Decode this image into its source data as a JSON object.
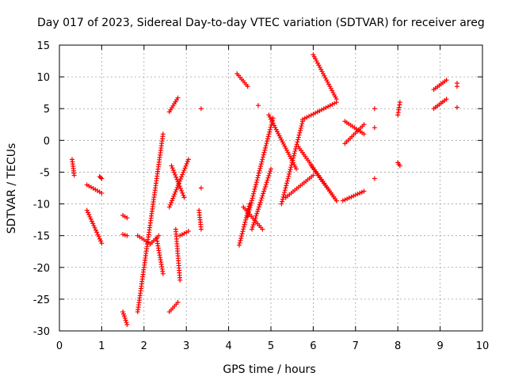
{
  "chart_data": {
    "type": "scatter",
    "title": "Day 017 of 2023, Sidereal Day-to-day VTEC variation (SDTVAR) for receiver areg",
    "xlabel": "GPS time / hours",
    "ylabel": "SDTVAR / TECUs",
    "xlim": [
      0,
      10
    ],
    "ylim": [
      -30,
      15
    ],
    "xticks": [
      "0",
      "1",
      "2",
      "3",
      "4",
      "5",
      "6",
      "7",
      "8",
      "9",
      "10"
    ],
    "yticks": [
      "-30",
      "-25",
      "-20",
      "-15",
      "-10",
      "-5",
      "0",
      "5",
      "10",
      "15"
    ],
    "grid": true,
    "marker": "+",
    "color": "#ff0000",
    "segments": [
      {
        "x0": 0.3,
        "x1": 0.35,
        "y0": -3.0,
        "y1": -5.5
      },
      {
        "x0": 0.65,
        "x1": 1.0,
        "y0": -7.0,
        "y1": -8.3
      },
      {
        "x0": 0.65,
        "x1": 1.0,
        "y0": -11.0,
        "y1": -16.2
      },
      {
        "x0": 0.95,
        "x1": 1.0,
        "y0": -5.7,
        "y1": -6.0
      },
      {
        "x0": 1.5,
        "x1": 1.6,
        "y0": -27.0,
        "y1": -29.0
      },
      {
        "x0": 1.5,
        "x1": 1.6,
        "y0": -11.8,
        "y1": -12.2
      },
      {
        "x0": 1.5,
        "x1": 1.6,
        "y0": -14.8,
        "y1": -15.0
      },
      {
        "x0": 1.85,
        "x1": 2.45,
        "y0": -27.0,
        "y1": 1.0
      },
      {
        "x0": 1.85,
        "x1": 2.15,
        "y0": -15.0,
        "y1": -16.3
      },
      {
        "x0": 2.15,
        "x1": 2.35,
        "y0": -16.3,
        "y1": -15.0
      },
      {
        "x0": 2.3,
        "x1": 2.45,
        "y0": -15.5,
        "y1": -21.0
      },
      {
        "x0": 2.6,
        "x1": 2.8,
        "y0": 4.5,
        "y1": 6.7
      },
      {
        "x0": 2.65,
        "x1": 2.95,
        "y0": -4.0,
        "y1": -9.0
      },
      {
        "x0": 2.6,
        "x1": 3.05,
        "y0": -10.5,
        "y1": -3.0
      },
      {
        "x0": 2.6,
        "x1": 2.8,
        "y0": -27.0,
        "y1": -25.5
      },
      {
        "x0": 2.75,
        "x1": 2.85,
        "y0": -14.0,
        "y1": -22.0
      },
      {
        "x0": 2.85,
        "x1": 3.05,
        "y0": -15.0,
        "y1": -14.3
      },
      {
        "x0": 3.3,
        "x1": 3.35,
        "y0": -11.0,
        "y1": -14.0
      },
      {
        "x0": 4.2,
        "x1": 4.45,
        "y0": 10.5,
        "y1": 8.5
      },
      {
        "x0": 4.25,
        "x1": 4.5,
        "y0": -16.5,
        "y1": -10.0
      },
      {
        "x0": 4.35,
        "x1": 4.8,
        "y0": -10.5,
        "y1": -14.0
      },
      {
        "x0": 4.45,
        "x1": 5.05,
        "y0": -12.0,
        "y1": 3.5
      },
      {
        "x0": 4.55,
        "x1": 5.0,
        "y0": -14.0,
        "y1": -4.5
      },
      {
        "x0": 4.95,
        "x1": 5.6,
        "y0": 4.0,
        "y1": -4.5
      },
      {
        "x0": 5.25,
        "x1": 5.75,
        "y0": -10.0,
        "y1": 3.0
      },
      {
        "x0": 5.35,
        "x1": 6.0,
        "y0": -9.0,
        "y1": -5.5
      },
      {
        "x0": 5.65,
        "x1": 6.55,
        "y0": -1.0,
        "y1": -9.5
      },
      {
        "x0": 5.75,
        "x1": 6.55,
        "y0": 3.3,
        "y1": 6.0
      },
      {
        "x0": 5.95,
        "x1": 6.55,
        "y0": -4.0,
        "y1": -9.5
      },
      {
        "x0": 6.0,
        "x1": 6.55,
        "y0": 13.5,
        "y1": 6.5
      },
      {
        "x0": 6.75,
        "x1": 7.2,
        "y0": 3.0,
        "y1": 1.0
      },
      {
        "x0": 6.75,
        "x1": 7.2,
        "y0": -0.5,
        "y1": 2.5
      },
      {
        "x0": 6.7,
        "x1": 7.2,
        "y0": -9.5,
        "y1": -8.0
      },
      {
        "x0": 8.0,
        "x1": 8.05,
        "y0": 4.0,
        "y1": 6.0
      },
      {
        "x0": 8.0,
        "x1": 8.05,
        "y0": -3.5,
        "y1": -4.0
      },
      {
        "x0": 8.85,
        "x1": 9.15,
        "y0": 8.0,
        "y1": 9.5
      },
      {
        "x0": 8.85,
        "x1": 9.15,
        "y0": 5.0,
        "y1": 6.5
      }
    ],
    "points": [
      {
        "x": 3.35,
        "y": 5.0
      },
      {
        "x": 3.35,
        "y": -7.5
      },
      {
        "x": 4.7,
        "y": 5.5
      },
      {
        "x": 7.45,
        "y": 5.0
      },
      {
        "x": 7.45,
        "y": 2.0
      },
      {
        "x": 7.45,
        "y": -6.0
      },
      {
        "x": 9.4,
        "y": 5.2
      },
      {
        "x": 9.4,
        "y": 8.5
      },
      {
        "x": 9.4,
        "y": 9.0
      }
    ]
  }
}
